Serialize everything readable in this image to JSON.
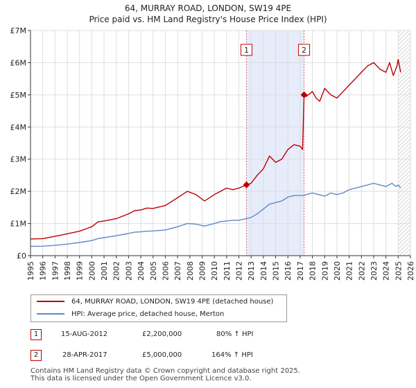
{
  "colors": {
    "property": "#bb0000",
    "hpi": "#5b8ac8",
    "shade": "#e6ecfa",
    "grid": "#dddddd",
    "marker_line": "#dd6677"
  },
  "chart_data": {
    "type": "line",
    "title": "64, MURRAY ROAD, LONDON, SW19 4PE",
    "subtitle": "Price paid vs. HM Land Registry's House Price Index (HPI)",
    "xlabel": "",
    "ylabel": "",
    "xlim": [
      1995.0,
      2026.0
    ],
    "ylim": [
      0,
      7000000
    ],
    "yticks": [
      0,
      1000000,
      2000000,
      3000000,
      4000000,
      5000000,
      6000000,
      7000000
    ],
    "ytick_labels": [
      "£0",
      "£1M",
      "£2M",
      "£3M",
      "£4M",
      "£5M",
      "£6M",
      "£7M"
    ],
    "xticks": [
      1995,
      1996,
      1997,
      1998,
      1999,
      2000,
      2001,
      2002,
      2003,
      2004,
      2005,
      2006,
      2007,
      2008,
      2009,
      2010,
      2011,
      2012,
      2013,
      2014,
      2015,
      2016,
      2017,
      2018,
      2019,
      2020,
      2021,
      2022,
      2023,
      2024,
      2025,
      2026
    ],
    "grid": true,
    "shaded_period": [
      2012.62,
      2017.32
    ],
    "hatched_from": 2025.0,
    "series": [
      {
        "name": "64, MURRAY ROAD, LONDON, SW19 4PE (detached house)",
        "color": "#bb0000",
        "x": [
          1995.0,
          1996.0,
          1997.0,
          1998.0,
          1999.0,
          2000.0,
          2000.5,
          2001.0,
          2002.0,
          2003.0,
          2003.5,
          2004.0,
          2004.5,
          2005.0,
          2006.0,
          2007.0,
          2007.8,
          2008.5,
          2009.2,
          2010.0,
          2010.5,
          2011.0,
          2011.5,
          2012.0,
          2012.62,
          2013.0,
          2013.5,
          2014.0,
          2014.5,
          2015.0,
          2015.5,
          2016.0,
          2016.5,
          2017.0,
          2017.2,
          2017.32,
          2017.5,
          2018.0,
          2018.3,
          2018.6,
          2019.0,
          2019.5,
          2020.0,
          2020.5,
          2021.0,
          2021.5,
          2022.0,
          2022.5,
          2023.0,
          2023.5,
          2024.0,
          2024.3,
          2024.6,
          2024.9,
          2025.0,
          2025.2
        ],
        "values": [
          520000,
          530000,
          600000,
          680000,
          760000,
          900000,
          1050000,
          1080000,
          1150000,
          1300000,
          1400000,
          1420000,
          1480000,
          1470000,
          1560000,
          1800000,
          2000000,
          1900000,
          1700000,
          1900000,
          2000000,
          2100000,
          2050000,
          2100000,
          2200000,
          2250000,
          2500000,
          2700000,
          3100000,
          2900000,
          3000000,
          3300000,
          3450000,
          3400000,
          3300000,
          5000000,
          4950000,
          5100000,
          4900000,
          4800000,
          5200000,
          5000000,
          4900000,
          5100000,
          5300000,
          5500000,
          5700000,
          5900000,
          6000000,
          5800000,
          5700000,
          6000000,
          5600000,
          5900000,
          6100000,
          5700000
        ]
      },
      {
        "name": "HPI: Average price, detached house, Merton",
        "color": "#5b8ac8",
        "x": [
          1995.0,
          1996.0,
          1997.0,
          1998.0,
          1999.0,
          2000.0,
          2000.5,
          2001.0,
          2002.0,
          2003.0,
          2003.5,
          2004.0,
          2004.5,
          2005.0,
          2006.0,
          2007.0,
          2007.8,
          2008.5,
          2009.2,
          2010.0,
          2010.5,
          2011.0,
          2011.5,
          2012.0,
          2012.62,
          2013.0,
          2013.5,
          2014.0,
          2014.5,
          2015.0,
          2015.5,
          2016.0,
          2016.5,
          2017.0,
          2017.32,
          2017.5,
          2018.0,
          2018.5,
          2019.0,
          2019.5,
          2020.0,
          2020.5,
          2021.0,
          2021.5,
          2022.0,
          2022.5,
          2023.0,
          2023.5,
          2024.0,
          2024.5,
          2024.8,
          2025.0,
          2025.2
        ],
        "values": [
          290000,
          295000,
          320000,
          360000,
          410000,
          470000,
          530000,
          560000,
          620000,
          690000,
          730000,
          740000,
          760000,
          770000,
          800000,
          900000,
          1000000,
          980000,
          920000,
          1000000,
          1060000,
          1080000,
          1100000,
          1100000,
          1150000,
          1190000,
          1300000,
          1450000,
          1600000,
          1650000,
          1700000,
          1820000,
          1870000,
          1870000,
          1870000,
          1900000,
          1950000,
          1900000,
          1850000,
          1950000,
          1900000,
          1950000,
          2050000,
          2100000,
          2150000,
          2200000,
          2250000,
          2200000,
          2150000,
          2250000,
          2150000,
          2200000,
          2100000
        ]
      }
    ],
    "transactions": [
      {
        "id": "1",
        "date": "15-AUG-2012",
        "price": "£2,200,000",
        "hpi_change": "80% ↑ HPI",
        "x": 2012.62,
        "value": 2200000
      },
      {
        "id": "2",
        "date": "28-APR-2017",
        "price": "£5,000,000",
        "hpi_change": "164% ↑ HPI",
        "x": 2017.32,
        "value": 5000000
      }
    ]
  },
  "legend": {
    "property_label": "64, MURRAY ROAD, LONDON, SW19 4PE (detached house)",
    "hpi_label": "HPI: Average price, detached house, Merton"
  },
  "footer": {
    "line1": "Contains HM Land Registry data © Crown copyright and database right 2025.",
    "line2": "This data is licensed under the Open Government Licence v3.0."
  }
}
